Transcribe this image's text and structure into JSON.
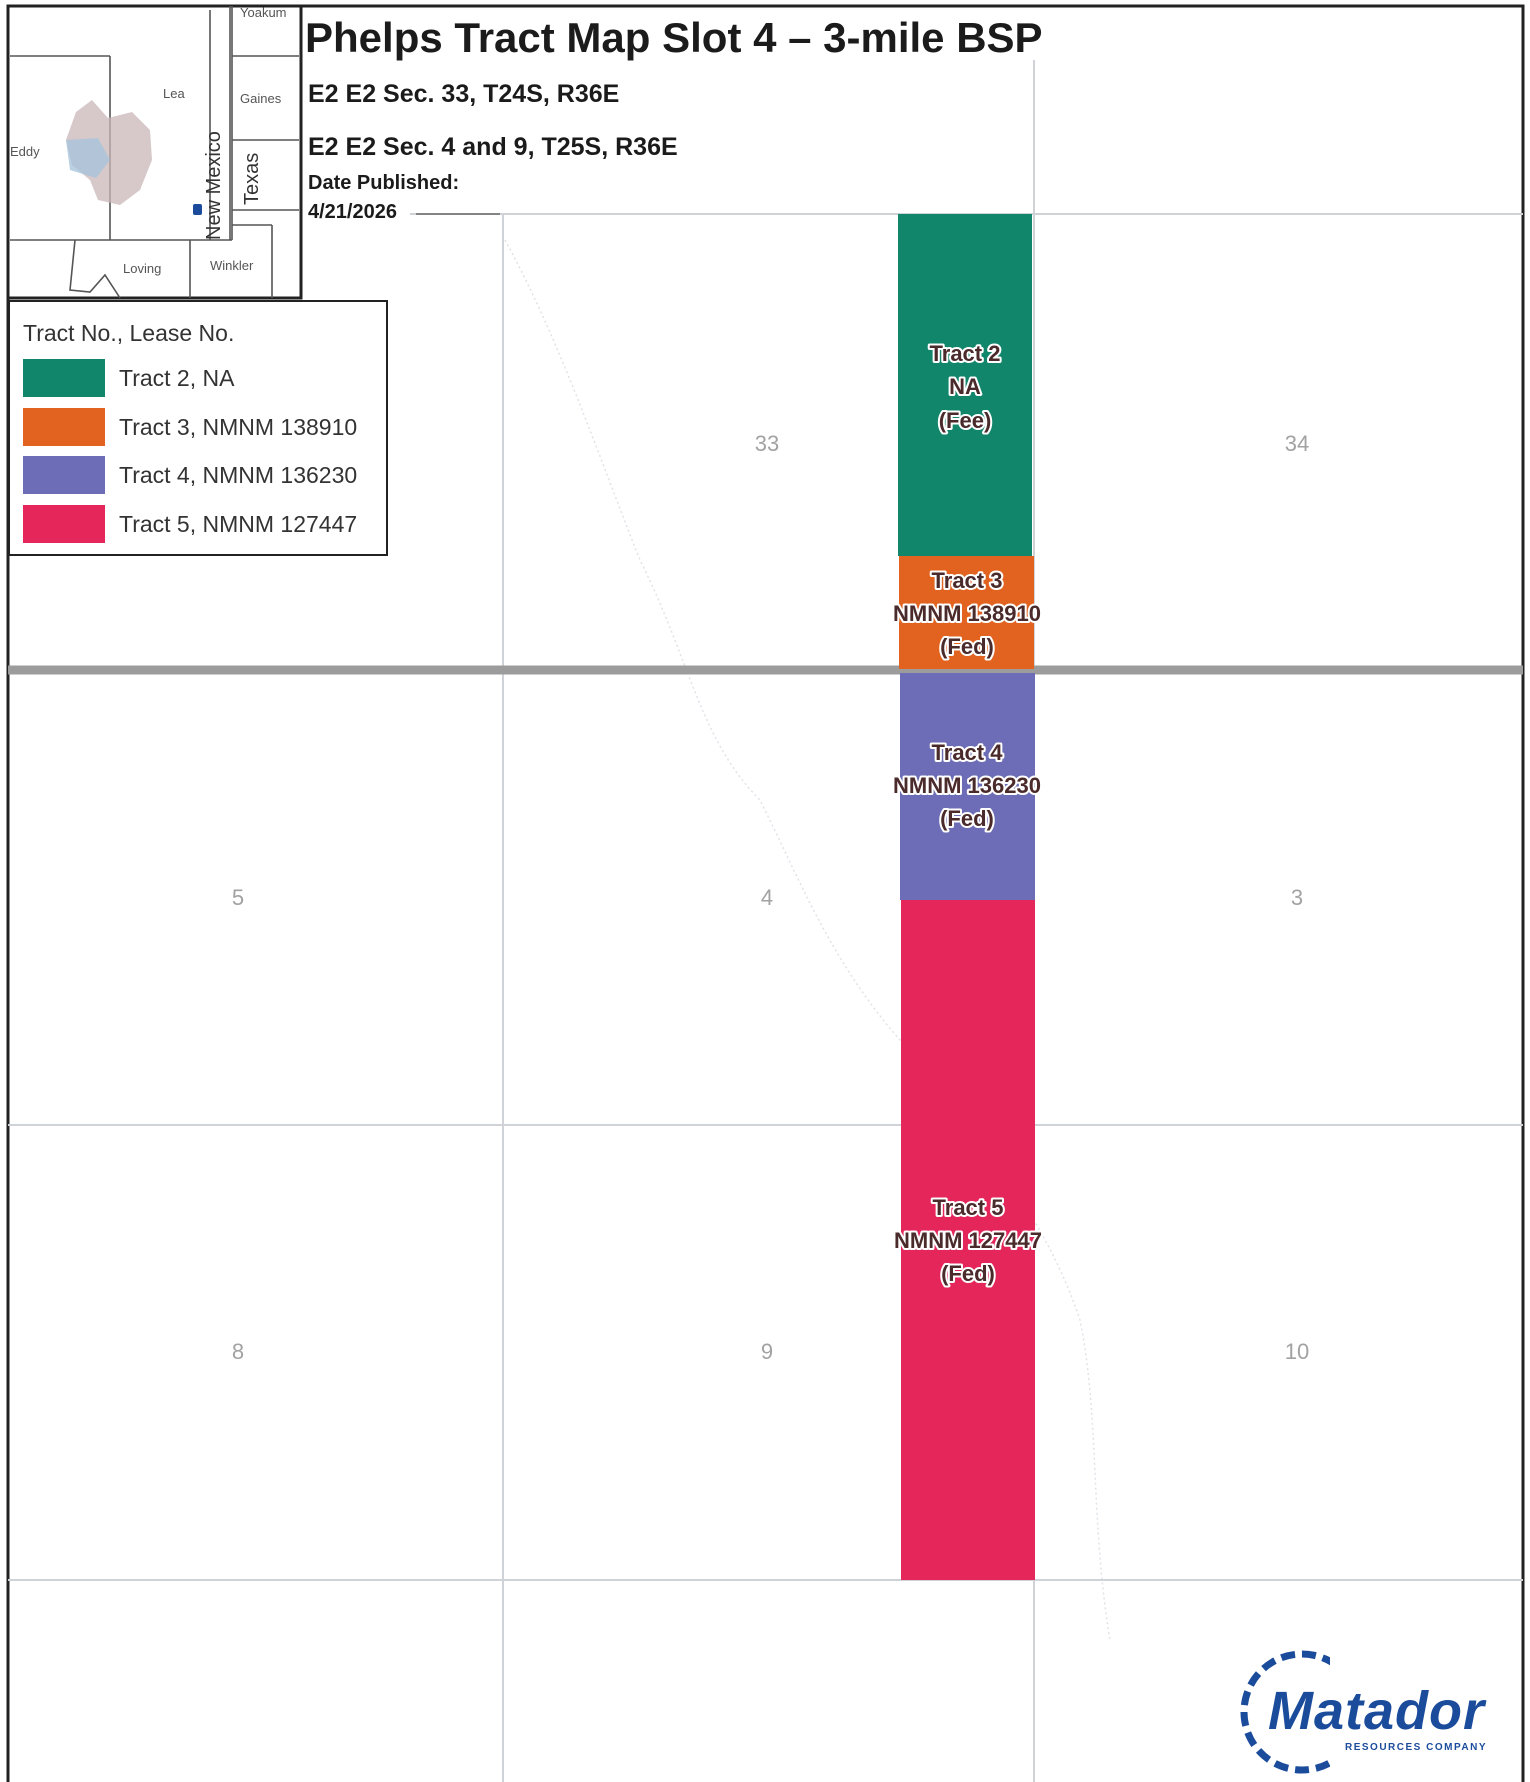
{
  "title": "Phelps Tract Map Slot 4 – 3-mile BSP",
  "subtitle_line1": "E2 E2 Sec. 33, T24S, R36E",
  "subtitle_line2": "E2 E2 Sec. 4 and 9, T25S, R36E",
  "date_label": "Date Published:",
  "date_value": "4/21/2026",
  "inset": {
    "county_labels": [
      "Yoakum",
      "Lea",
      "Gaines",
      "Eddy",
      "Loving",
      "Winkler"
    ],
    "state_labels": [
      "New Mexico",
      "Texas"
    ]
  },
  "legend": {
    "title": "Tract No., Lease No.",
    "items": [
      {
        "label": "Tract 2, NA",
        "color": "#11866a"
      },
      {
        "label": "Tract 3, NMNM 138910",
        "color": "#e1631f"
      },
      {
        "label": "Tract 4, NMNM 136230",
        "color": "#6c6cb7"
      },
      {
        "label": "Tract 5, NMNM 127447",
        "color": "#e5265a"
      }
    ]
  },
  "sections": [
    "33",
    "34",
    "5",
    "4",
    "3",
    "8",
    "9",
    "10"
  ],
  "tracts": [
    {
      "lines": [
        "Tract 2",
        "NA",
        "(Fee)"
      ],
      "color": "#11866a"
    },
    {
      "lines": [
        "Tract 3",
        "NMNM 138910",
        "(Fed)"
      ],
      "color": "#e1631f"
    },
    {
      "lines": [
        "Tract 4",
        "NMNM 136230",
        "(Fed)"
      ],
      "color": "#6c6cb7"
    },
    {
      "lines": [
        "Tract 5",
        "NMNM 127447",
        "(Fed)"
      ],
      "color": "#e5265a"
    }
  ],
  "logo": {
    "name": "Matador",
    "tagline": "RESOURCES COMPANY"
  }
}
